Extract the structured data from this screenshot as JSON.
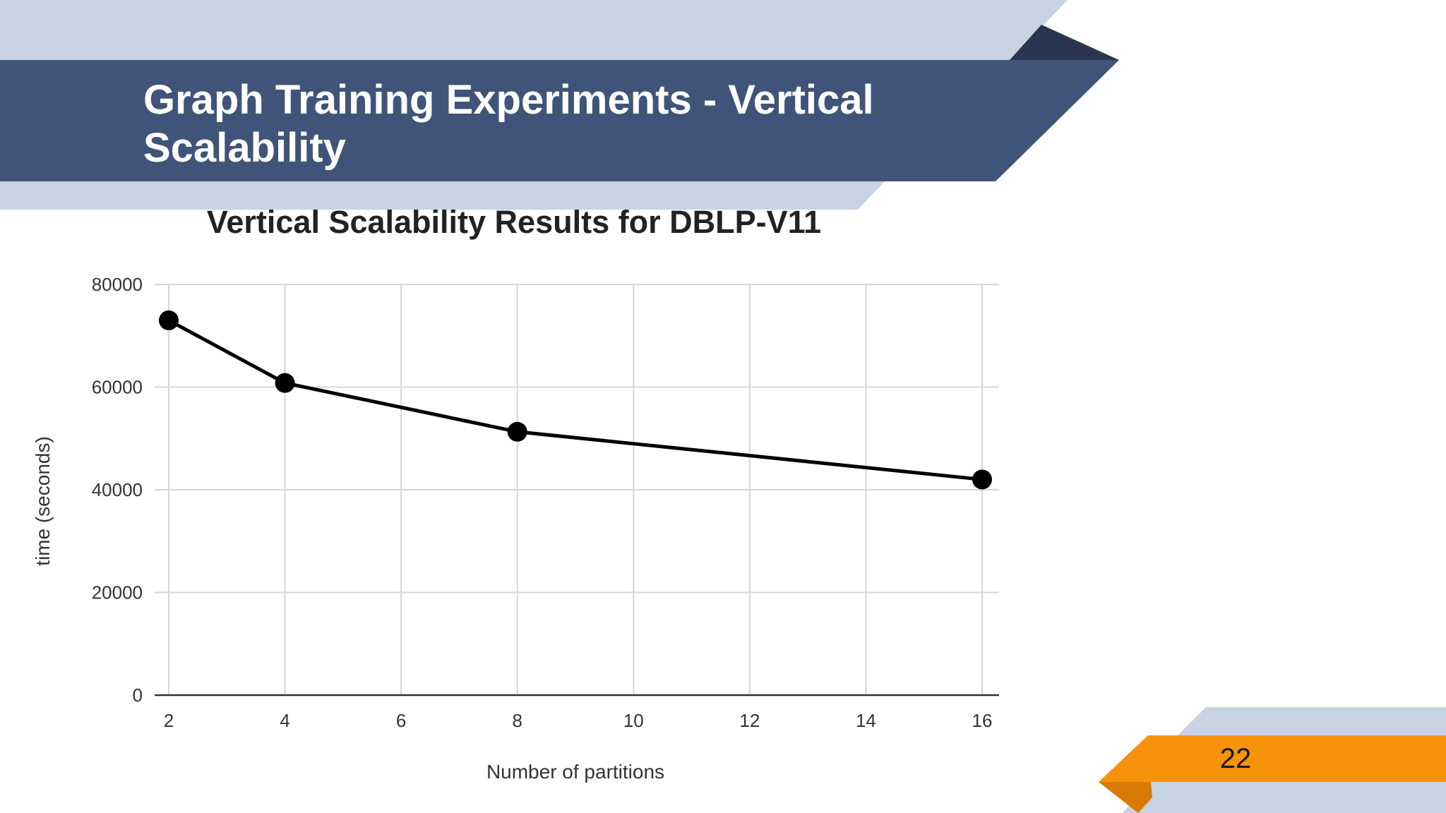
{
  "slide": {
    "title": "Graph Training Experiments - Vertical Scalability",
    "page_number": "22",
    "colors": {
      "title_band": "#3f5478",
      "light_band": "#c7d3e3",
      "dark_triangle": "#2a3550",
      "page_tab": "#f7930a",
      "page_tab_shadow": "#d97a06"
    }
  },
  "chart_data": {
    "type": "line",
    "title": "Vertical Scalability Results for DBLP-V11",
    "xlabel": "Number of partitions",
    "ylabel": "time (seconds)",
    "x": [
      2,
      4,
      8,
      16
    ],
    "series": [
      {
        "values": [
          73000,
          60800,
          51300,
          42000
        ],
        "color": "#000000"
      }
    ],
    "xlim": [
      2,
      16
    ],
    "ylim": [
      0,
      80000
    ],
    "xticks": [
      2,
      4,
      6,
      8,
      10,
      12,
      14,
      16
    ],
    "yticks": [
      0,
      20000,
      40000,
      60000,
      80000
    ],
    "grid": true,
    "legend": "none"
  }
}
